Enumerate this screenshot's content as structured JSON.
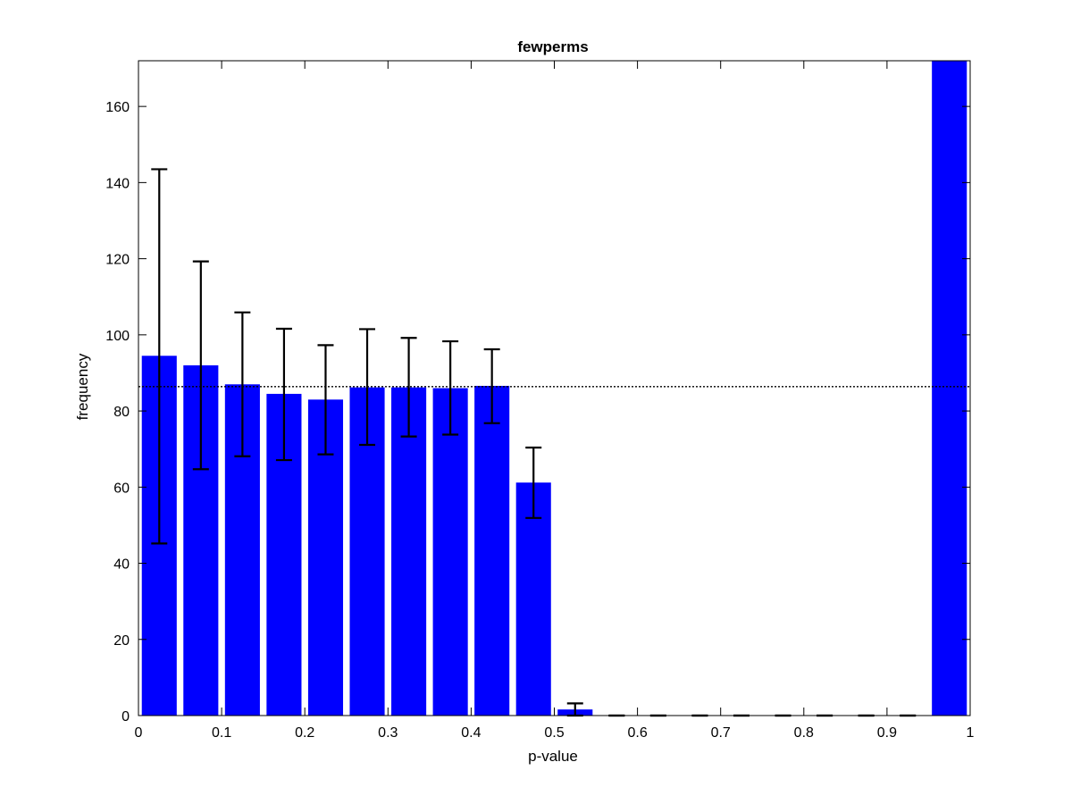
{
  "chart_data": {
    "type": "bar",
    "title": "fewperms",
    "xlabel": "p-value",
    "ylabel": "frequency",
    "xlim": [
      0,
      1
    ],
    "ylim": [
      0,
      172
    ],
    "x_ticks": [
      "0",
      "0.1",
      "0.2",
      "0.3",
      "0.4",
      "0.5",
      "0.6",
      "0.7",
      "0.8",
      "0.9",
      "1"
    ],
    "y_ticks": [
      "0",
      "20",
      "40",
      "60",
      "80",
      "100",
      "120",
      "140",
      "160"
    ],
    "bar_color": "#0000ff",
    "bin_centers": [
      0.025,
      0.075,
      0.125,
      0.175,
      0.225,
      0.275,
      0.325,
      0.375,
      0.425,
      0.475,
      0.525,
      0.575,
      0.625,
      0.675,
      0.725,
      0.775,
      0.825,
      0.875,
      0.925,
      0.975
    ],
    "values": [
      94.5,
      92,
      87,
      84.5,
      83,
      86.2,
      86.2,
      86,
      86.6,
      61.2,
      1.6,
      0,
      0,
      0,
      0,
      0,
      0,
      0,
      0,
      172
    ],
    "error_low": [
      45.2,
      64.7,
      68.1,
      67.1,
      68.6,
      71.1,
      73.3,
      73.8,
      76.8,
      51.9,
      0,
      0,
      0,
      0,
      0,
      0,
      0,
      0,
      0,
      null
    ],
    "error_high": [
      143.5,
      119.3,
      105.9,
      101.6,
      97.3,
      101.5,
      99.2,
      98.3,
      96.2,
      70.4,
      3.2,
      0,
      0,
      0,
      0,
      0,
      0,
      0,
      0,
      null
    ],
    "reference_line": 86.4,
    "grid": false,
    "box": true
  }
}
